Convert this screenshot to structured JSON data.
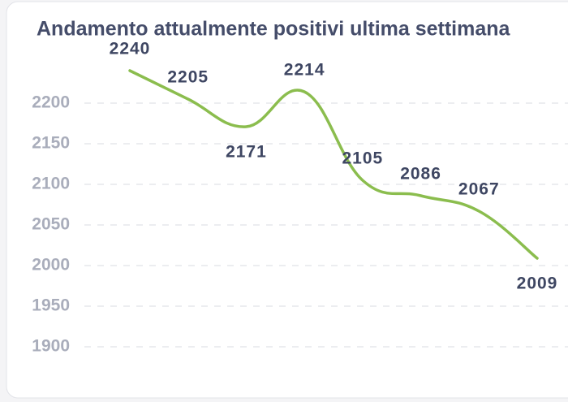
{
  "chart_data": {
    "type": "line",
    "title": "Andamento attualmente positivi ultima settimana",
    "categories": [
      null,
      null,
      null,
      null,
      null,
      null,
      null,
      null
    ],
    "values": [
      2240,
      2205,
      2171,
      2214,
      2105,
      2086,
      2067,
      2009
    ],
    "color": "#8bbd4e",
    "ylim": [
      1880,
      2250
    ],
    "yticks": [
      1900,
      1950,
      2000,
      2050,
      2100,
      2150,
      2200
    ],
    "grid": true
  }
}
